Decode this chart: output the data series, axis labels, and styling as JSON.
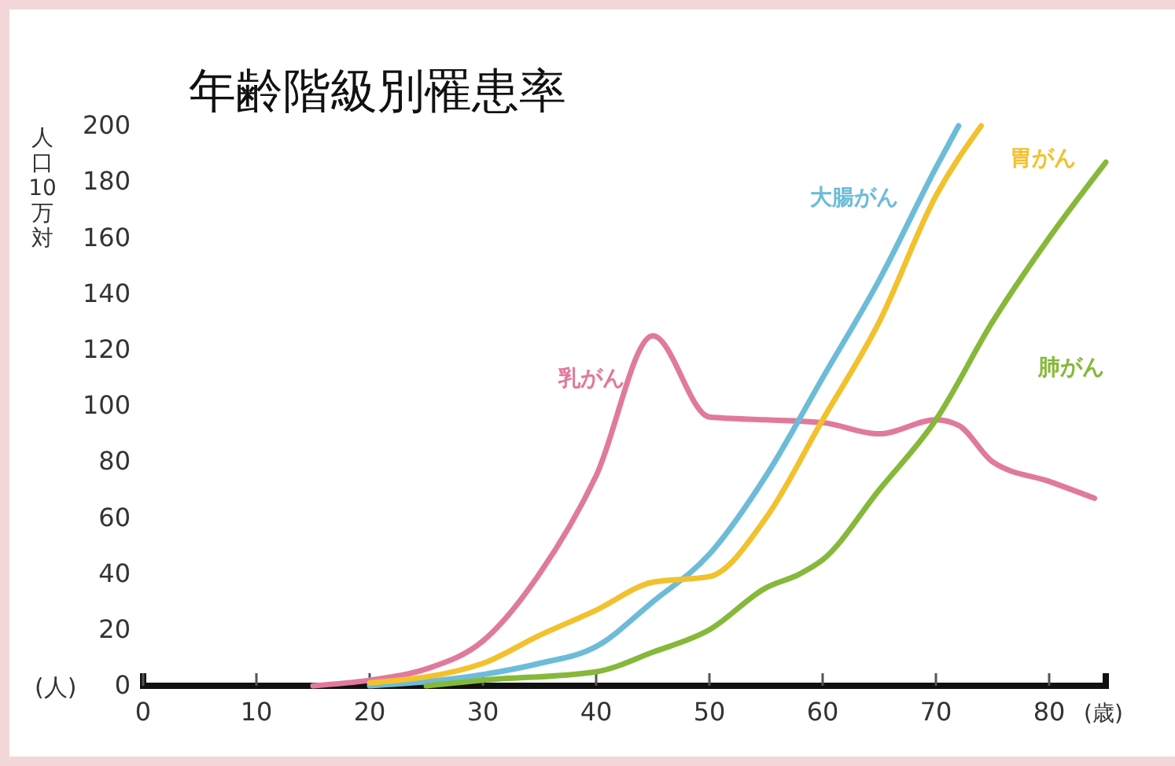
{
  "chart_data": {
    "type": "line",
    "title": "年齢階級別罹患率",
    "xlabel": "(歳)",
    "ylabel": "人口10万対",
    "annotations": [
      "(人)"
    ],
    "xlim": [
      0,
      85
    ],
    "xticks": [
      0,
      10,
      20,
      30,
      40,
      50,
      60,
      70,
      80
    ],
    "ylim": [
      0,
      200
    ],
    "yticks": [
      0,
      20,
      40,
      60,
      80,
      100,
      120,
      140,
      160,
      180,
      200
    ],
    "grid": false,
    "marker": "none",
    "line_style": "solid",
    "series": [
      {
        "name": "乳がん",
        "color": "#e07a9c",
        "x": [
          15,
          20,
          25,
          30,
          35,
          40,
          45,
          50,
          55,
          60,
          65,
          70,
          72,
          75,
          80,
          84
        ],
        "values": [
          0,
          2,
          6,
          16,
          40,
          75,
          125,
          96,
          95,
          94,
          90,
          95,
          93,
          80,
          73,
          67
        ]
      },
      {
        "name": "大腸がん",
        "color": "#6cbcd8",
        "x": [
          20,
          30,
          35,
          40,
          45,
          50,
          55,
          60,
          65,
          70,
          72
        ],
        "values": [
          0,
          4,
          8,
          14,
          30,
          47,
          75,
          110,
          145,
          185,
          200
        ]
      },
      {
        "name": "胃がん",
        "color": "#f2c12e",
        "x": [
          20,
          30,
          35,
          40,
          45,
          50,
          55,
          60,
          65,
          70,
          74
        ],
        "values": [
          1,
          8,
          18,
          27,
          37,
          39,
          60,
          95,
          130,
          175,
          200
        ]
      },
      {
        "name": "肺がん",
        "color": "#86b83a",
        "x": [
          25,
          30,
          40,
          45,
          50,
          55,
          58,
          60,
          65,
          70,
          75,
          80,
          85
        ],
        "values": [
          0,
          2,
          5,
          12,
          20,
          35,
          40,
          45,
          70,
          95,
          130,
          160,
          187
        ]
      }
    ]
  }
}
